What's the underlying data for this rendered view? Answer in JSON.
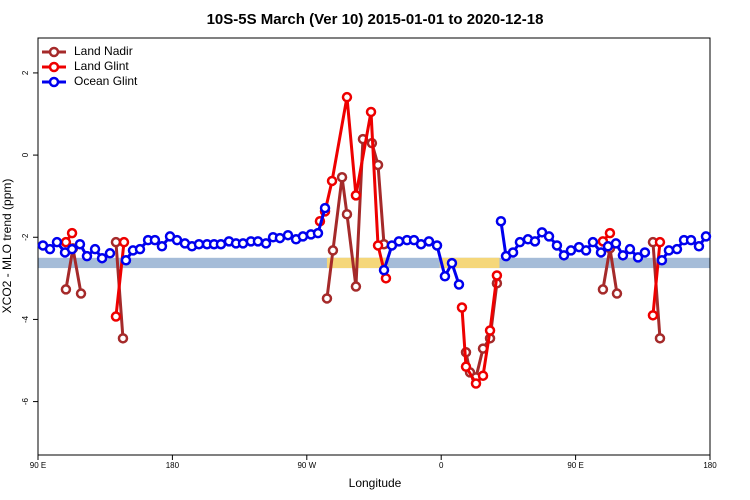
{
  "chart_data": {
    "type": "line",
    "title": "10S-5S March (Ver 10)   2015-01-01 to 2020-12-18",
    "x_label": "Longitude",
    "y_label": "XCO2 - MLO trend (ppm)",
    "xlim": [
      90,
      540
    ],
    "ylim": [
      -7.3,
      2.85
    ],
    "xticks": [
      {
        "value": 90,
        "label": "90 E"
      },
      180,
      {
        "value": 270,
        "label": "90 W"
      },
      {
        "value": 360,
        "label": "0"
      },
      {
        "value": 450,
        "label": "90 E"
      },
      {
        "value": 540,
        "label": "180"
      }
    ],
    "yticks": [
      -6,
      -4,
      -2,
      0,
      2
    ],
    "legend": "top-left",
    "band": {
      "ylim": [
        -2.75,
        -2.5
      ],
      "color": "#a5bcd8",
      "highlights": [
        {
          "xlim": [
            283.5,
            324.4
          ],
          "color": "#f5d77a"
        },
        {
          "xlim": [
            359,
            399
          ],
          "color": "#f5d77a"
        }
      ]
    },
    "series": [
      {
        "name": "Land Nadir",
        "color": "#a52a2a",
        "x": [
          108.7,
          113.4,
          118.8,
          null,
          142.2,
          146.9,
          null,
          283.5,
          287.5,
          293.6,
          296.9,
          302.9,
          307.6,
          313.6,
          317.7,
          321.7,
          null,
          376.6,
          379.3,
          383.3,
          388.0,
          392.7,
          397.3,
          null,
          468.3,
          473.0,
          477.7,
          null,
          501.8,
          506.5
        ],
        "values": [
          -3.27,
          -2.27,
          -3.37,
          null,
          -2.12,
          -4.46,
          null,
          -3.49,
          -2.32,
          -0.54,
          -1.44,
          -3.2,
          0.39,
          0.29,
          -0.24,
          -2.17,
          null,
          -4.8,
          -5.29,
          -5.41,
          -4.71,
          -4.46,
          -3.12,
          null,
          -3.27,
          -2.27,
          -3.37,
          null,
          -2.12,
          -4.46
        ]
      },
      {
        "name": "Land Glint",
        "color": "#ee0000",
        "x": [
          108.7,
          112.8,
          null,
          142.2,
          147.6,
          null,
          278.8,
          282.2,
          286.9,
          296.9,
          302.9,
          313.0,
          317.7,
          323.0,
          null,
          373.9,
          376.6,
          383.3,
          388.0,
          392.7,
          397.3,
          null,
          468.3,
          473.0,
          null,
          501.8,
          506.5
        ],
        "values": [
          -2.12,
          -1.9,
          null,
          -3.93,
          -2.12,
          null,
          -1.61,
          -1.37,
          -0.63,
          1.41,
          -0.98,
          1.05,
          -2.2,
          -3.0,
          null,
          -3.71,
          -5.15,
          -5.56,
          -5.37,
          -4.27,
          -2.93,
          null,
          -2.1,
          -1.9,
          null,
          -3.9,
          -2.12
        ]
      },
      {
        "name": "Ocean Glint",
        "color": "#0000ee",
        "x": [
          93.3,
          98.0,
          102.7,
          108.1,
          112.8,
          118.1,
          122.8,
          128.2,
          132.9,
          138.2,
          null,
          148.9,
          153.6,
          158.3,
          163.7,
          168.3,
          173.0,
          178.4,
          183.1,
          188.4,
          193.1,
          197.8,
          203.2,
          207.9,
          212.5,
          217.9,
          222.6,
          227.3,
          232.6,
          237.3,
          242.7,
          247.4,
          252.0,
          257.4,
          262.8,
          267.4,
          272.8,
          277.5,
          282.2,
          null,
          321.7,
          327.0,
          331.7,
          337.1,
          341.8,
          346.5,
          351.8,
          357.2,
          362.5,
          367.2,
          371.9,
          null,
          400.0,
          403.4,
          408.1,
          412.7,
          418.1,
          422.8,
          427.5,
          432.2,
          437.5,
          442.2,
          446.9,
          452.3,
          457.0,
          461.6,
          467.0,
          471.7,
          477.0,
          481.7,
          486.4,
          491.8,
          496.4,
          null,
          507.8,
          512.5,
          517.9,
          522.6,
          527.3,
          532.6,
          537.3
        ],
        "values": [
          -2.2,
          -2.29,
          -2.12,
          -2.37,
          -2.29,
          -2.17,
          -2.46,
          -2.29,
          -2.51,
          -2.39,
          null,
          -2.56,
          -2.32,
          -2.29,
          -2.07,
          -2.07,
          -2.22,
          -1.98,
          -2.07,
          -2.15,
          -2.22,
          -2.17,
          -2.17,
          -2.17,
          -2.17,
          -2.1,
          -2.15,
          -2.15,
          -2.1,
          -2.1,
          -2.15,
          -2.0,
          -2.02,
          -1.95,
          -2.05,
          -1.98,
          -1.93,
          -1.9,
          -1.29,
          null,
          -2.8,
          -2.2,
          -2.1,
          -2.07,
          -2.07,
          -2.17,
          -2.1,
          -2.2,
          -2.95,
          -2.63,
          -3.15,
          null,
          -1.61,
          -2.46,
          -2.37,
          -2.12,
          -2.05,
          -2.1,
          -1.88,
          -1.98,
          -2.2,
          -2.44,
          -2.32,
          -2.24,
          -2.32,
          -2.12,
          -2.37,
          -2.22,
          -2.15,
          -2.44,
          -2.29,
          -2.49,
          -2.37,
          null,
          -2.56,
          -2.32,
          -2.29,
          -2.07,
          -2.07,
          -2.22,
          -1.98
        ]
      }
    ]
  }
}
